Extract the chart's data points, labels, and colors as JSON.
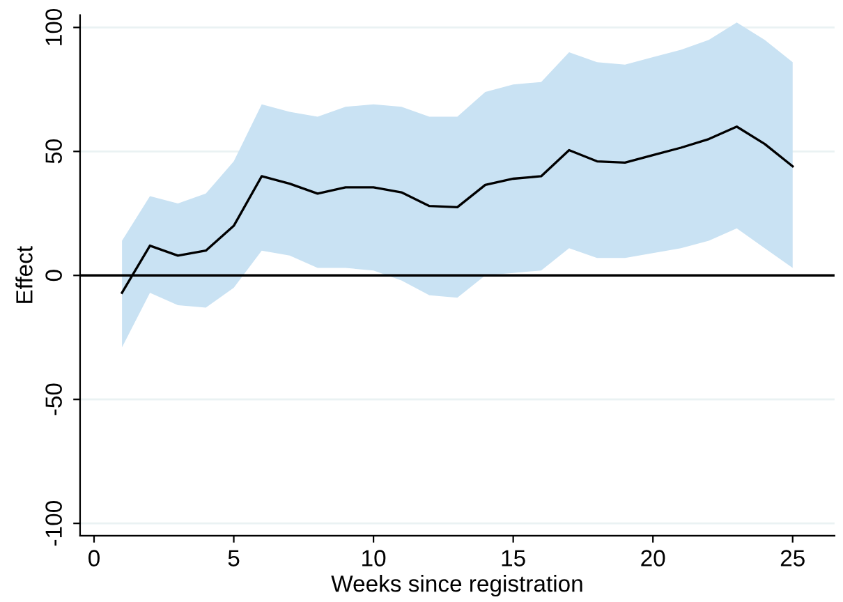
{
  "chart_data": {
    "type": "line",
    "xlabel": "Weeks since registration",
    "ylabel": "Effect",
    "x": [
      1,
      2,
      3,
      4,
      5,
      6,
      7,
      8,
      9,
      10,
      11,
      12,
      13,
      14,
      15,
      16,
      17,
      18,
      19,
      20,
      21,
      22,
      23,
      24,
      25
    ],
    "series": [
      {
        "color": "#000000",
        "values": [
          -7,
          12,
          8,
          10,
          20,
          40,
          37,
          33,
          35.5,
          35.5,
          33.5,
          28,
          27.5,
          36.5,
          39,
          40,
          50.5,
          46,
          45.5,
          48.5,
          51.5,
          55,
          60,
          53,
          44
        ],
        "lower": [
          -29,
          -7,
          -12,
          -13,
          -5,
          10,
          8,
          3,
          3,
          2,
          -2,
          -8,
          -9,
          0,
          1,
          2,
          11,
          7,
          7,
          9,
          11,
          14,
          19,
          11,
          3
        ],
        "upper": [
          14,
          32,
          29,
          33,
          46,
          69,
          66,
          64,
          68,
          69,
          68,
          64,
          64,
          74,
          77,
          78,
          90,
          86,
          85,
          88,
          91,
          95,
          102,
          95,
          86
        ]
      }
    ],
    "xlim": [
      -0.5,
      26.5
    ],
    "ylim": [
      -105,
      105
    ],
    "xticks": [
      0,
      5,
      10,
      15,
      20,
      25
    ],
    "yticks": [
      -100,
      -50,
      0,
      50,
      100
    ],
    "grid": "y",
    "legend": false,
    "marker": "none",
    "line_style": "solid",
    "ref_lines": [
      {
        "axis": "y",
        "value": 0,
        "color": "#000000"
      }
    ]
  }
}
